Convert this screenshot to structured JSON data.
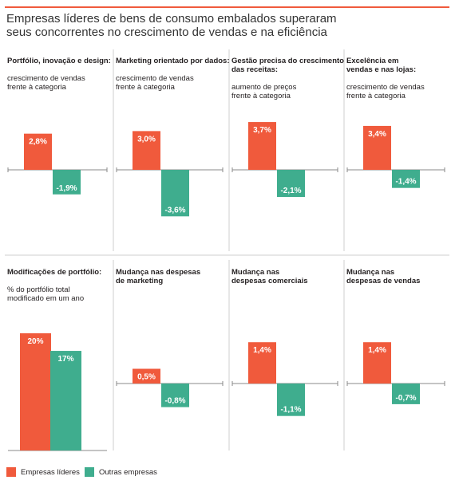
{
  "title_line1": "Empresas líderes de bens de consumo embalados superaram",
  "title_line2": "seus concorrentes no crescimento de vendas e na eficiência",
  "legend": {
    "leaders": "Empresas líderes",
    "others": "Outras empresas"
  },
  "colors": {
    "leaders": "#f05a3c",
    "others": "#3fad8e",
    "axis": "#888888",
    "grid": "#cfcfcf",
    "title_rule": "#f05a3c"
  },
  "chart_data": [
    {
      "type": "bar",
      "title": "Portfólio, inovação e design:",
      "subtitle": [
        "crescimento de vendas",
        "frente à categoria"
      ],
      "categories": [
        "Empresas líderes",
        "Outras empresas"
      ],
      "values": [
        2.8,
        -1.9
      ],
      "labels": [
        "2,8%",
        "-1,9%"
      ]
    },
    {
      "type": "bar",
      "title": "Marketing orientado por dados:",
      "subtitle": [
        "crescimento de vendas",
        "frente à categoria"
      ],
      "categories": [
        "Empresas líderes",
        "Outras empresas"
      ],
      "values": [
        3.0,
        -3.6
      ],
      "labels": [
        "3,0%",
        "-3,6%"
      ]
    },
    {
      "type": "bar",
      "title": [
        "Gestão precisa do crescimento",
        "das receitas:"
      ],
      "subtitle": [
        "aumento de preços",
        "frente à categoria"
      ],
      "categories": [
        "Empresas líderes",
        "Outras empresas"
      ],
      "values": [
        3.7,
        -2.1
      ],
      "labels": [
        "3,7%",
        "-2,1%"
      ]
    },
    {
      "type": "bar",
      "title": [
        "Excelência em",
        "vendas e nas lojas:"
      ],
      "subtitle": [
        "crescimento de vendas",
        "frente à categoria"
      ],
      "categories": [
        "Empresas líderes",
        "Outras empresas"
      ],
      "values": [
        3.4,
        -1.4
      ],
      "labels": [
        "3,4%",
        "-1,4%"
      ]
    },
    {
      "type": "bar",
      "title": "Modificações de portfólio:",
      "subtitle": [
        "% do portfólio total",
        "modificado em um ano"
      ],
      "categories": [
        "Empresas líderes",
        "Outras empresas"
      ],
      "values": [
        20,
        17
      ],
      "labels": [
        "20%",
        "17%"
      ]
    },
    {
      "type": "bar",
      "title": [
        "Mudança nas despesas",
        "de marketing"
      ],
      "subtitle": [],
      "categories": [
        "Empresas líderes",
        "Outras empresas"
      ],
      "values": [
        0.5,
        -0.8
      ],
      "labels": [
        "0,5%",
        "-0,8%"
      ]
    },
    {
      "type": "bar",
      "title": [
        "Mudança nas",
        "despesas comerciais"
      ],
      "subtitle": [],
      "categories": [
        "Empresas líderes",
        "Outras empresas"
      ],
      "values": [
        1.4,
        -1.1
      ],
      "labels": [
        "1,4%",
        "-1,1%"
      ]
    },
    {
      "type": "bar",
      "title": [
        "Mudança nas",
        "despesas de vendas"
      ],
      "subtitle": [],
      "categories": [
        "Empresas líderes",
        "Outras empresas"
      ],
      "values": [
        1.4,
        -0.7
      ],
      "labels": [
        "1,4%",
        "-0,7%"
      ]
    }
  ]
}
